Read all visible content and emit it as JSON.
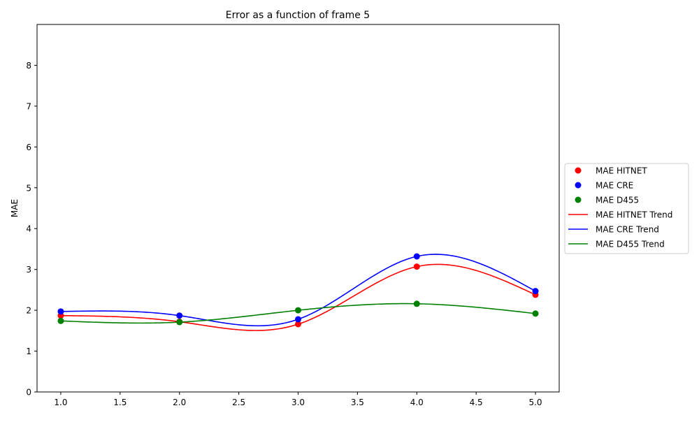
{
  "chart_data": {
    "type": "line",
    "title": "Error as a function of frame 5",
    "xlabel": "",
    "ylabel": "MAE",
    "xlim": [
      0.8,
      5.2
    ],
    "ylim": [
      0,
      9
    ],
    "xticks": [
      1.0,
      1.5,
      2.0,
      2.5,
      3.0,
      3.5,
      4.0,
      4.5,
      5.0
    ],
    "xtick_labels": [
      "1.0",
      "1.5",
      "2.0",
      "2.5",
      "3.0",
      "3.5",
      "4.0",
      "4.5",
      "5.0"
    ],
    "yticks": [
      0,
      1,
      2,
      3,
      4,
      5,
      6,
      7,
      8
    ],
    "ytick_labels": [
      "0",
      "1",
      "2",
      "3",
      "4",
      "5",
      "6",
      "7",
      "8"
    ],
    "grid": false,
    "legend_position": "outside-right",
    "x": [
      1,
      2,
      3,
      4,
      5
    ],
    "series": [
      {
        "name": "MAE HITNET",
        "color": "#ff0000",
        "values": [
          1.87,
          1.72,
          1.66,
          3.07,
          2.38
        ]
      },
      {
        "name": "MAE CRE",
        "color": "#0000ff",
        "values": [
          1.97,
          1.87,
          1.78,
          3.32,
          2.47
        ]
      },
      {
        "name": "MAE D455",
        "color": "#008000",
        "values": [
          1.74,
          1.71,
          2.0,
          2.16,
          1.92
        ]
      }
    ],
    "trend_lines": [
      {
        "name": "MAE HITNET Trend",
        "color": "#ff0000"
      },
      {
        "name": "MAE CRE Trend",
        "color": "#0000ff"
      },
      {
        "name": "MAE D455 Trend",
        "color": "#008000"
      }
    ]
  }
}
